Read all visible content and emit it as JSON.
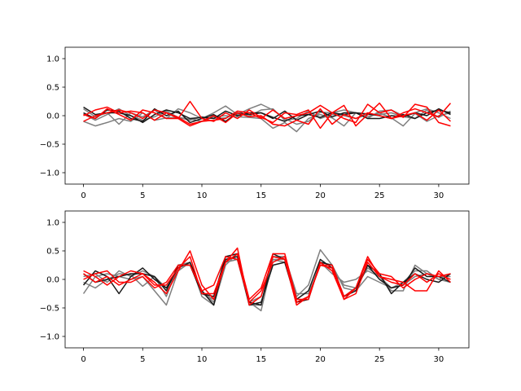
{
  "chart_data": [
    {
      "type": "line",
      "xlim": [
        -1.55,
        32.55
      ],
      "ylim": [
        -1.2,
        1.2
      ],
      "x_ticks": [
        0,
        5,
        10,
        15,
        20,
        25,
        30
      ],
      "y_ticks": [
        1.0,
        0.5,
        0.0,
        -0.5,
        -1.0
      ],
      "x_tick_labels": [
        "0",
        "5",
        "10",
        "15",
        "20",
        "25",
        "30"
      ],
      "y_tick_labels": [
        "1.0",
        "0.5",
        "0.0",
        "−0.5",
        "−1.0"
      ],
      "x": [
        0,
        1,
        2,
        3,
        4,
        5,
        6,
        7,
        8,
        9,
        10,
        11,
        12,
        13,
        14,
        15,
        16,
        17,
        18,
        19,
        20,
        21,
        22,
        23,
        24,
        25,
        26,
        27,
        28,
        29,
        30,
        31
      ],
      "colors": {
        "gray": "#7f7f7f",
        "black": "#1a1a1a",
        "red": "#ff0000"
      },
      "series": [
        {
          "color": "gray",
          "values": [
            -0.1,
            -0.18,
            -0.12,
            -0.05,
            -0.1,
            0.05,
            -0.08,
            -0.04,
            -0.03,
            -0.06,
            -0.1,
            -0.02,
            0.0,
            -0.02,
            -0.03,
            -0.05,
            -0.22,
            -0.12,
            -0.28,
            -0.05,
            0.02,
            -0.04,
            -0.18,
            0.05,
            -0.02,
            0.05,
            -0.04,
            -0.18,
            0.04,
            -0.1,
            0.0,
            0.05
          ]
        },
        {
          "color": "gray",
          "values": [
            0.12,
            -0.02,
            0.05,
            -0.15,
            0.05,
            -0.02,
            0.1,
            -0.05,
            0.12,
            0.05,
            -0.05,
            0.05,
            0.17,
            0.02,
            0.12,
            0.2,
            0.1,
            -0.05,
            -0.15,
            -0.1,
            0.06,
            0.05,
            0.1,
            0.05,
            -0.05,
            0.08,
            0.1,
            0.0,
            0.05,
            0.12,
            0.05,
            -0.05
          ]
        },
        {
          "color": "gray",
          "values": [
            0.03,
            -0.08,
            0.02,
            0.12,
            0.0,
            -0.08,
            -0.02,
            0.08,
            -0.03,
            -0.08,
            -0.02,
            -0.05,
            -0.04,
            0.05,
            -0.01,
            0.1,
            0.12,
            -0.08,
            -0.05,
            0.08,
            -0.05,
            0.02,
            0.0,
            -0.05,
            0.02,
            0.02,
            0.05,
            -0.02,
            -0.05,
            0.1,
            -0.03,
            0.08
          ]
        },
        {
          "color": "black",
          "values": [
            0.15,
            0.02,
            0.05,
            0.05,
            0.0,
            -0.12,
            0.02,
            0.1,
            0.05,
            -0.05,
            -0.03,
            -0.05,
            0.08,
            0.0,
            0.05,
            0.05,
            -0.05,
            0.08,
            -0.08,
            0.02,
            -0.03,
            0.05,
            0.02,
            0.05,
            0.03,
            0.0,
            -0.05,
            0.02,
            -0.05,
            0.05,
            0.1,
            0.05
          ]
        },
        {
          "color": "black",
          "values": [
            0.05,
            -0.05,
            0.1,
            0.08,
            -0.05,
            -0.1,
            0.12,
            0.0,
            0.08,
            -0.12,
            -0.05,
            0.02,
            -0.1,
            0.05,
            0.02,
            0.05,
            -0.03,
            -0.1,
            0.0,
            0.02,
            0.08,
            -0.02,
            0.05,
            0.05,
            -0.05,
            -0.05,
            0.0,
            -0.02,
            0.05,
            0.0,
            0.12,
            0.02
          ]
        },
        {
          "color": "red",
          "values": [
            0.0,
            0.1,
            0.15,
            0.05,
            0.08,
            0.05,
            -0.08,
            0.05,
            -0.05,
            0.25,
            -0.05,
            -0.1,
            0.05,
            -0.05,
            0.1,
            -0.03,
            -0.12,
            0.05,
            0.02,
            0.1,
            -0.22,
            0.05,
            0.18,
            -0.18,
            0.02,
            0.22,
            -0.05,
            0.05,
            0.12,
            0.05,
            -0.02,
            0.22
          ]
        },
        {
          "color": "red",
          "values": [
            -0.1,
            0.0,
            0.05,
            0.1,
            0.05,
            -0.05,
            0.1,
            0.05,
            -0.03,
            -0.15,
            -0.1,
            -0.08,
            -0.05,
            0.08,
            0.05,
            -0.05,
            0.1,
            -0.05,
            0.0,
            0.05,
            0.18,
            0.05,
            -0.05,
            -0.12,
            0.2,
            0.05,
            0.1,
            -0.03,
            0.2,
            0.15,
            -0.12,
            -0.18
          ]
        },
        {
          "color": "red",
          "values": [
            0.02,
            -0.05,
            0.12,
            0.02,
            -0.08,
            0.1,
            0.05,
            -0.05,
            -0.05,
            -0.18,
            -0.1,
            0.0,
            -0.12,
            0.05,
            -0.02,
            0.0,
            -0.15,
            -0.18,
            -0.08,
            -0.15,
            0.12,
            -0.15,
            0.02,
            -0.05,
            0.05,
            0.0,
            -0.05,
            0.0,
            0.05,
            -0.08,
            0.1,
            -0.1
          ]
        }
      ]
    },
    {
      "type": "line",
      "xlim": [
        -1.55,
        32.55
      ],
      "ylim": [
        -1.2,
        1.2
      ],
      "x_ticks": [
        0,
        5,
        10,
        15,
        20,
        25,
        30
      ],
      "y_ticks": [
        1.0,
        0.5,
        0.0,
        -0.5,
        -1.0
      ],
      "x_tick_labels": [
        "0",
        "5",
        "10",
        "15",
        "20",
        "25",
        "30"
      ],
      "y_tick_labels": [
        "1.0",
        "0.5",
        "0.0",
        "−0.5",
        "−1.0"
      ],
      "x": [
        0,
        1,
        2,
        3,
        4,
        5,
        6,
        7,
        8,
        9,
        10,
        11,
        12,
        13,
        14,
        15,
        16,
        17,
        18,
        19,
        20,
        21,
        22,
        23,
        24,
        25,
        26,
        27,
        28,
        29,
        30,
        31
      ],
      "colors": {
        "gray": "#7f7f7f",
        "black": "#1a1a1a",
        "red": "#ff0000"
      },
      "series": [
        {
          "color": "gray",
          "values": [
            -0.25,
            0.05,
            0.1,
            0.05,
            0.0,
            0.05,
            -0.2,
            -0.45,
            0.15,
            0.3,
            -0.25,
            -0.35,
            0.3,
            0.35,
            -0.4,
            -0.55,
            0.35,
            0.3,
            -0.3,
            -0.1,
            0.52,
            0.25,
            -0.15,
            -0.2,
            0.05,
            -0.05,
            -0.15,
            -0.1,
            0.05,
            0.1,
            0.0,
            0.1
          ]
        },
        {
          "color": "gray",
          "values": [
            0.05,
            0.1,
            -0.05,
            0.15,
            0.05,
            0.15,
            0.05,
            -0.3,
            0.25,
            0.3,
            -0.2,
            -0.4,
            0.4,
            0.35,
            -0.45,
            -0.45,
            0.4,
            0.4,
            -0.25,
            -0.25,
            0.25,
            0.2,
            -0.1,
            -0.15,
            0.2,
            0.05,
            -0.2,
            -0.2,
            0.25,
            0.1,
            0.05,
            0.05
          ]
        },
        {
          "color": "gray",
          "values": [
            -0.05,
            -0.15,
            0.0,
            0.1,
            0.08,
            -0.12,
            0.05,
            -0.15,
            0.15,
            0.3,
            -0.3,
            -0.45,
            0.25,
            0.45,
            -0.4,
            -0.3,
            0.35,
            0.35,
            -0.4,
            -0.3,
            0.3,
            0.1,
            -0.05,
            0.0,
            0.15,
            0.05,
            -0.15,
            -0.05,
            0.15,
            0.15,
            0.0,
            -0.05
          ]
        },
        {
          "color": "black",
          "values": [
            -0.1,
            0.15,
            0.05,
            -0.25,
            0.05,
            0.2,
            0.0,
            -0.15,
            0.2,
            0.3,
            -0.2,
            -0.45,
            0.35,
            0.4,
            -0.45,
            -0.4,
            0.25,
            0.3,
            -0.4,
            -0.35,
            0.3,
            0.25,
            -0.3,
            -0.2,
            0.25,
            0.0,
            -0.15,
            -0.1,
            0.2,
            0.05,
            0.05,
            -0.05
          ]
        },
        {
          "color": "black",
          "values": [
            0.1,
            -0.05,
            0.0,
            0.05,
            0.1,
            0.1,
            0.05,
            -0.2,
            0.25,
            0.25,
            -0.25,
            -0.3,
            0.4,
            0.45,
            -0.4,
            -0.45,
            0.45,
            0.35,
            -0.35,
            -0.2,
            0.35,
            0.2,
            -0.3,
            -0.15,
            0.25,
            0.1,
            -0.25,
            -0.05,
            0.1,
            0.0,
            -0.05,
            0.1
          ]
        },
        {
          "color": "red",
          "values": [
            0.15,
            0.05,
            -0.1,
            0.05,
            0.15,
            0.1,
            -0.05,
            -0.25,
            0.15,
            0.5,
            -0.1,
            -0.35,
            0.3,
            0.55,
            -0.45,
            -0.3,
            0.4,
            0.35,
            -0.45,
            -0.3,
            0.25,
            0.2,
            -0.35,
            -0.15,
            0.4,
            0.05,
            -0.05,
            -0.1,
            0.1,
            -0.05,
            0.1,
            0.0
          ]
        },
        {
          "color": "red",
          "values": [
            0.1,
            -0.05,
            0.05,
            -0.1,
            0.0,
            0.1,
            -0.1,
            -0.1,
            0.2,
            0.4,
            -0.25,
            -0.25,
            0.3,
            0.45,
            -0.35,
            -0.15,
            0.45,
            0.45,
            -0.35,
            -0.35,
            0.3,
            0.15,
            -0.35,
            -0.25,
            0.3,
            0.05,
            0.0,
            -0.05,
            -0.2,
            -0.2,
            0.15,
            -0.05
          ]
        },
        {
          "color": "red",
          "values": [
            0.0,
            0.1,
            0.15,
            -0.05,
            -0.05,
            0.05,
            -0.15,
            -0.05,
            0.25,
            0.25,
            -0.2,
            -0.1,
            0.4,
            0.35,
            -0.4,
            -0.2,
            0.3,
            0.4,
            -0.4,
            -0.3,
            0.25,
            0.25,
            -0.3,
            -0.15,
            0.35,
            0.1,
            0.05,
            -0.15,
            0.0,
            0.1,
            0.05,
            0.1
          ]
        }
      ]
    }
  ]
}
